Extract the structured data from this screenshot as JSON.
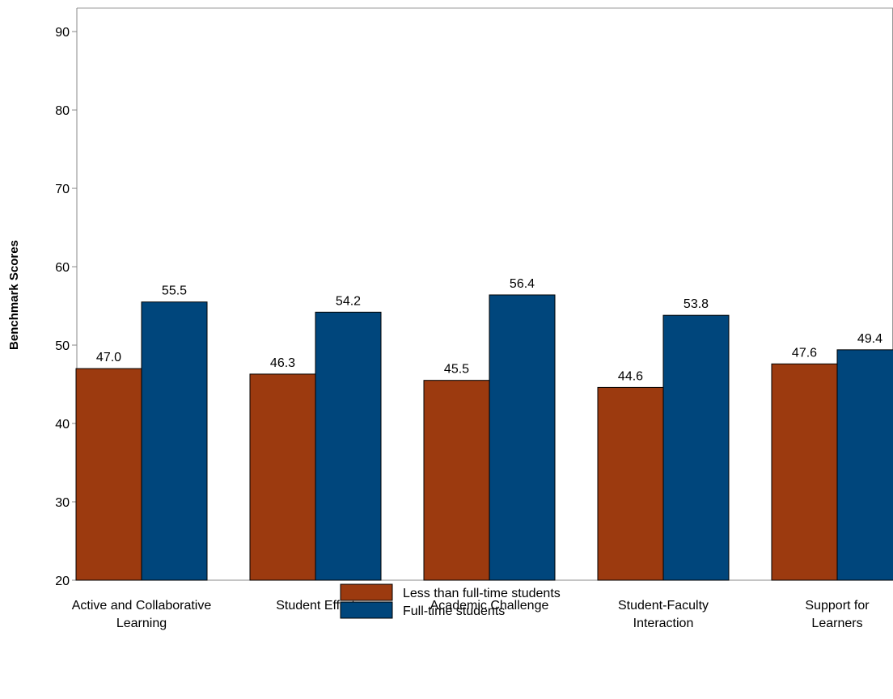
{
  "chart_data": {
    "type": "bar",
    "title": "",
    "xlabel": "",
    "ylabel": "Benchmark Scores",
    "ylim": [
      20,
      93
    ],
    "yticks": [
      20,
      30,
      40,
      50,
      60,
      70,
      80,
      90
    ],
    "grid": false,
    "legend_position": "bottom-center",
    "categories": [
      [
        "Active and Collaborative",
        "Learning"
      ],
      [
        "Student Effort"
      ],
      [
        "Academic Challenge"
      ],
      [
        "Student-Faculty",
        "Interaction"
      ],
      [
        "Support for",
        "Learners"
      ]
    ],
    "series": [
      {
        "name": "Less than full-time students",
        "color": "#9c3a0f",
        "values": [
          47.0,
          46.3,
          45.5,
          44.6,
          47.6
        ],
        "labels": [
          "47.0",
          "46.3",
          "45.5",
          "44.6",
          "47.6"
        ]
      },
      {
        "name": "Full-time students",
        "color": "#00467c",
        "values": [
          55.5,
          54.2,
          56.4,
          53.8,
          49.4
        ],
        "labels": [
          "55.5",
          "54.2",
          "56.4",
          "53.8",
          "49.4"
        ]
      }
    ]
  }
}
